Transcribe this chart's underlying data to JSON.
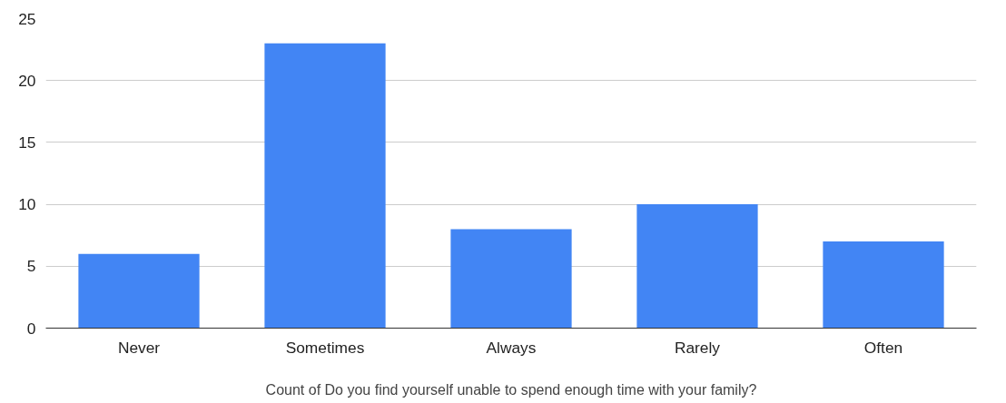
{
  "chart_data": {
    "type": "bar",
    "categories": [
      "Never",
      "Sometimes",
      "Always",
      "Rarely",
      "Often"
    ],
    "values": [
      6,
      23,
      8,
      10,
      7
    ],
    "color": "#4285f4",
    "xlabel": "Count of Do you find yourself unable to spend enough time with your family?",
    "ylim": [
      0,
      25
    ],
    "yticks": [
      0,
      5,
      10,
      15,
      20,
      25
    ],
    "grid": "y"
  }
}
